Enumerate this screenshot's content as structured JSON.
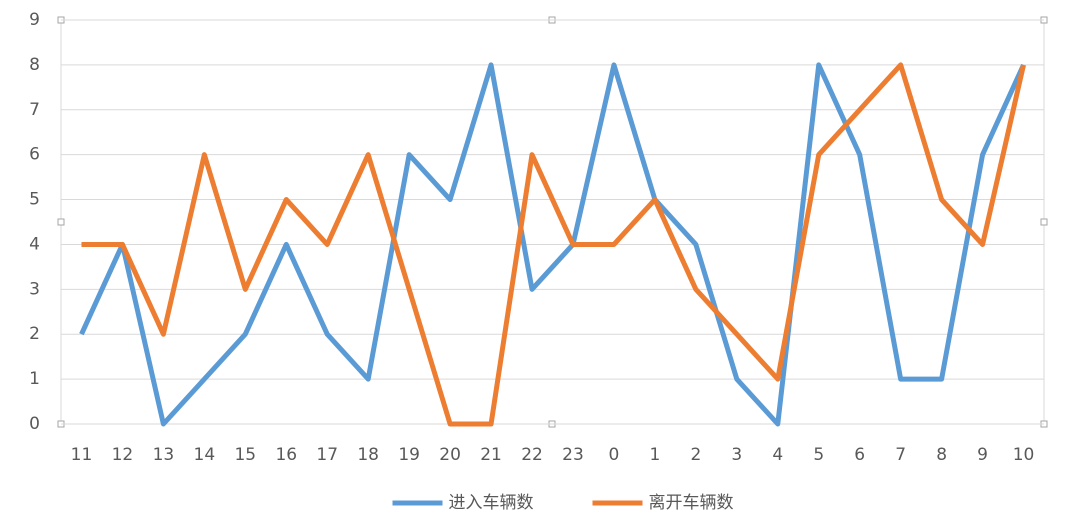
{
  "chart_data": {
    "type": "line",
    "categories": [
      "11",
      "12",
      "13",
      "14",
      "15",
      "16",
      "17",
      "18",
      "19",
      "20",
      "21",
      "22",
      "23",
      "0",
      "1",
      "2",
      "3",
      "4",
      "5",
      "6",
      "7",
      "8",
      "9",
      "10"
    ],
    "series": [
      {
        "name": "进入车辆数",
        "color": "#5b9bd5",
        "values": [
          2,
          4,
          0,
          1,
          2,
          4,
          2,
          1,
          6,
          5,
          8,
          3,
          4,
          8,
          5,
          4,
          1,
          0,
          8,
          6,
          1,
          1,
          6,
          8
        ]
      },
      {
        "name": "离开车辆数",
        "color": "#ed7d31",
        "values": [
          4,
          4,
          2,
          6,
          3,
          5,
          4,
          6,
          3,
          0,
          0,
          6,
          4,
          4,
          5,
          3,
          2,
          1,
          6,
          7,
          8,
          5,
          4,
          8
        ]
      }
    ],
    "ylim": [
      0,
      9
    ],
    "yticks": [
      0,
      1,
      2,
      3,
      4,
      5,
      6,
      7,
      8,
      9
    ],
    "grid": true,
    "legend": "bottom"
  }
}
